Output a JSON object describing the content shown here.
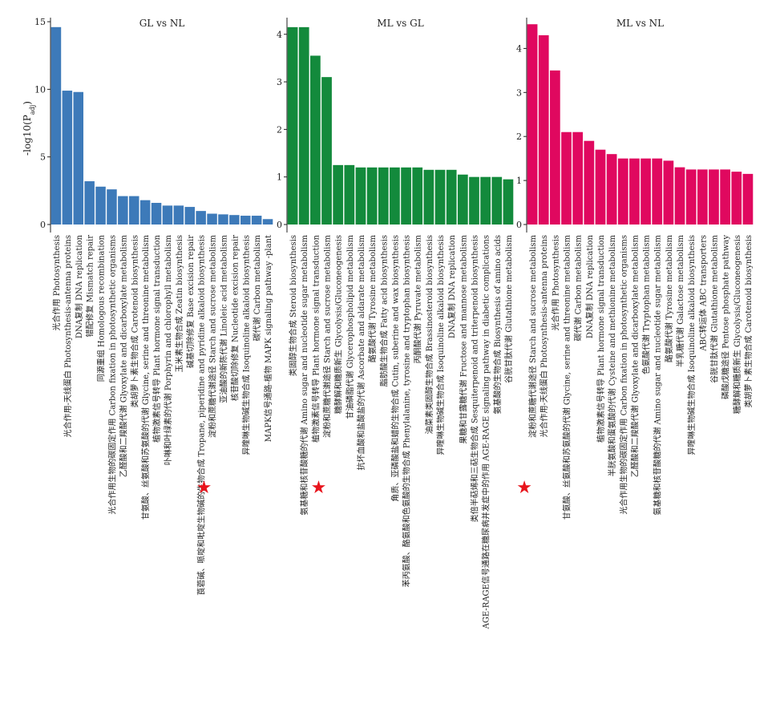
{
  "figure": {
    "ylabel": "-log10(P",
    "ylabel_sub": "adj",
    "ylabel_close": ")"
  },
  "chart_data": [
    {
      "type": "bar",
      "title": "GL vs NL",
      "color": "#3d7ab9",
      "ylim": [
        0,
        15.3
      ],
      "yticks": [
        0,
        5,
        10,
        15
      ],
      "highlight_index": 14,
      "categories": [
        "光合作用 Photosynthesis",
        "光合作用-天线蛋白 Photosynthesis-antenna proteins",
        "DNA复制 DNA replication",
        "错配修复 Mismatch repair",
        "同源重组 Homologous recombination",
        "光合作用生物的碳固定作用 Carbon fixation in photosynthetic organisms",
        "乙醛酸和二羧酸代谢 Glyoxylate and dicarboxylate metabolism",
        "类胡萝卜素生物合成 Carotenoid biosynthesis",
        "甘氨酸、丝氨酸和苏氨酸的代谢 Glycine, serine and threonine metabolism",
        "植物激素信号转导 Plant hormone signal transduction",
        "卟啉和叶绿素的代谢 Porphyrin and chlorophyll metabolism",
        "玉米素生物合成 Zeatin biosynthesis",
        "碱基切除修复 Base excision repair",
        "莨菪碱、哌啶和吡啶生物碱的生物合成 Tropane, piperidine and pyridine alkaloid biosynthesis",
        "淀粉和蔗糖代谢途径 Starch and sucrose metabolism",
        "亚油酸的新陈代谢 Linoleic acid metabolism",
        "核苷酸切除修复 Nucleotide excision repair",
        "异喹啉生物碱生物合成 Isoquinoline alkaloid biosynthesis",
        "碳代谢 Carbon metabolism",
        "MAPK信号通路-植物 MAPK signaling pathway -plant"
      ],
      "values": [
        14.6,
        9.9,
        9.8,
        3.2,
        2.8,
        2.6,
        2.1,
        2.1,
        1.8,
        1.6,
        1.4,
        1.4,
        1.3,
        1.0,
        0.8,
        0.75,
        0.7,
        0.65,
        0.65,
        0.4
      ]
    },
    {
      "type": "bar",
      "title": "ML vs GL",
      "color": "#138a3c",
      "ylim": [
        0,
        4.35
      ],
      "yticks": [
        0,
        1,
        2,
        3,
        4
      ],
      "highlight_index": 3,
      "categories": [
        "类固醇生物合成 Steroid biosynthesis",
        "氨基糖和核苷酸糖的代谢 Amino sugar and nucleotide sugar metabolism",
        "植物激素信号转导 Plant hormone signal transduction",
        "淀粉和蔗糖代谢途径 Starch and sucrose metabolism",
        "糖酵解和糖质新生 Glycolysis/Gluconeogenesis",
        "甘油磷脂代谢 Glycerophospholipid metabolism",
        "抗坏血酸和盐酸盐的代谢 Ascorbate and aldarate metabolism",
        "酪氨酸代谢 Tyrosine metabolism",
        "脂肪酸生物合成 Fatty acid biosynthesis",
        "角质、亚磷酸盐和蜡的生物合成 Cutin, suberine and wax biosynthesis",
        "苯丙氨酸、酪氨酸和色氨酸的生物合成 Phenylalanine, tyrosine and tryptophan biosynthesis",
        "丙酮酸代谢 Pyruvate metabolism",
        "油菜素类固醇生物合成 Brassinosteroid biosynthesis",
        "异喹啉生物碱生物合成 Isoquinoline alkaloid biosynthesis",
        "DNA复制 DNA replication",
        "果糖和甘露糖代谢 Fructose and mannose metabolism",
        "类倍半萜烯和三萜生物合成 Sesquiterpenoid and triterpenoid biosynthesis",
        "AGE-RAGE信号通路在糖尿病并发症中的作用 AGE-RAGE signaling pathway in diabetic complications",
        "氨基酸的生物合成 Biosynthesis of amino acids",
        "谷胱甘肽代谢 Glutathione metabolism"
      ],
      "values": [
        4.15,
        4.15,
        3.55,
        3.1,
        1.25,
        1.25,
        1.2,
        1.2,
        1.2,
        1.2,
        1.2,
        1.2,
        1.15,
        1.15,
        1.15,
        1.05,
        1.0,
        1.0,
        1.0,
        0.95
      ]
    },
    {
      "type": "bar",
      "title": "ML vs NL",
      "color": "#e0085f",
      "ylim": [
        0,
        4.7
      ],
      "yticks": [
        0,
        1,
        2,
        3,
        4
      ],
      "highlight_index": 0,
      "categories": [
        "淀粉和蔗糖代谢途径 Starch and sucrose metabolism",
        "光合作用-天线蛋白 Photosynthesis-antenna proteins",
        "光合作用 Photosynthesis",
        "甘氨酸、丝氨酸和苏氨酸的代谢 Glycine, serine and threonine metabolism",
        "碳代谢 Carbon metabolism",
        "DNA复制 DNA replication",
        "植物激素信号转导 Plant hormone signal transduction",
        "半胱氨酸和蛋氨酸的代谢 Cysteine and methionine metabolism",
        "光合作用生物的碳固定作用 Carbon fixation in photosynthetic organisms",
        "乙醛酸和二羧酸代谢 Glyoxylate and dicarboxylate metabolism",
        "色氨酸代谢 Tryptophan metabolism",
        "氨基糖和核苷酸糖的代谢 Amino sugar and nucleotide sugar metabolism",
        "酪氨酸代谢 Tyrosine metabolism",
        "半乳糖代谢 Galactose metabolism",
        "异喹啉生物碱生物合成 Isoquinoline alkaloid biosynthesis",
        "ABC转运体 ABC transporters",
        "谷胱甘肽代谢 Glutathione metabolism",
        "磷酸戊糖途径 Pentose phosphate pathway",
        "糖酵解和糖质新生 Glycolysis/Gluconeogenesis",
        "类胡萝卜素生物合成 Carotenoid biosynthesis"
      ],
      "values": [
        4.55,
        4.3,
        3.5,
        2.1,
        2.1,
        1.9,
        1.7,
        1.6,
        1.5,
        1.5,
        1.5,
        1.5,
        1.45,
        1.3,
        1.25,
        1.25,
        1.25,
        1.25,
        1.2,
        1.15
      ]
    }
  ]
}
